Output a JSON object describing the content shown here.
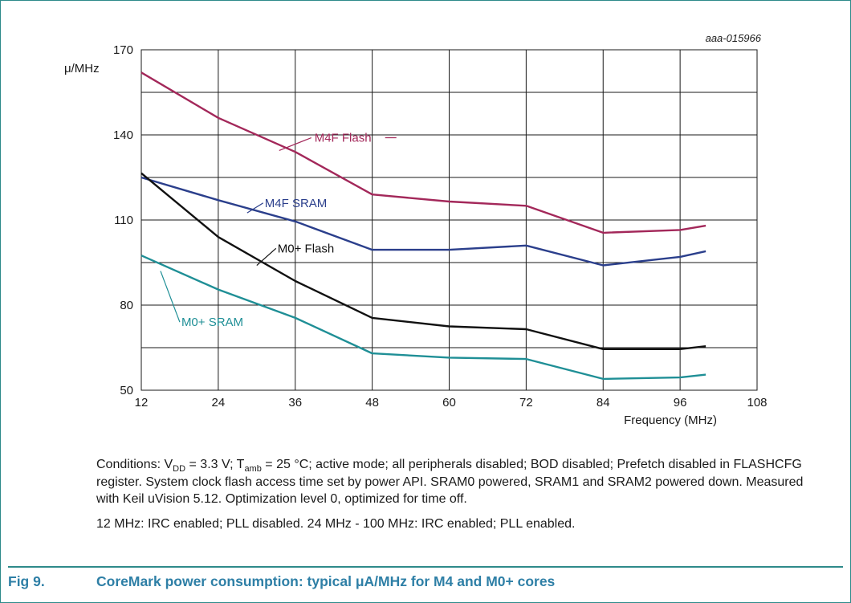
{
  "chart_data": {
    "type": "line",
    "id_label": "aaa-015966",
    "ylabel": "μ/MHz",
    "xlabel": "Frequency (MHz)",
    "xlim": [
      12,
      108
    ],
    "ylim": [
      50,
      170
    ],
    "xticks": [
      12,
      24,
      36,
      48,
      60,
      72,
      84,
      96,
      108
    ],
    "yticks": [
      50,
      80,
      110,
      140,
      170
    ],
    "grid": true,
    "series": [
      {
        "name": "M4F Flash",
        "color": "#a3285a",
        "x": [
          12,
          24,
          36,
          48,
          60,
          72,
          84,
          96,
          100
        ],
        "y": [
          162,
          146,
          134,
          119,
          116.5,
          115,
          105.5,
          106.5,
          108
        ]
      },
      {
        "name": "M4F SRAM",
        "color": "#2b3f8c",
        "x": [
          12,
          24,
          36,
          48,
          60,
          72,
          84,
          96,
          100
        ],
        "y": [
          125,
          117,
          109.5,
          99.5,
          99.5,
          101,
          94,
          97,
          99
        ]
      },
      {
        "name": "M0+ Flash",
        "color": "#111111",
        "x": [
          12,
          24,
          36,
          48,
          60,
          72,
          84,
          96,
          100
        ],
        "y": [
          126.5,
          104,
          88.5,
          75.5,
          72.5,
          71.5,
          64.5,
          64.5,
          65.5
        ]
      },
      {
        "name": "M0+ SRAM",
        "color": "#1f8f96",
        "x": [
          12,
          24,
          36,
          48,
          60,
          72,
          84,
          96,
          100
        ],
        "y": [
          97.5,
          85.5,
          75.5,
          63,
          61.5,
          61,
          54,
          54.5,
          55.5
        ]
      }
    ]
  },
  "notes": {
    "conditions_prefix": "Conditions: V",
    "vdd_sub": "DD",
    "vdd_value": " = 3.3 V; T",
    "tamb_sub": "amb",
    "conditions_rest": " = 25 °C; active mode; all peripherals disabled; BOD disabled; Prefetch disabled in FLASHCFG register. System clock flash access time set by power API. SRAM0 powered, SRAM1 and SRAM2 powered down. Measured with Keil uVision 5.12. Optimization level 0, optimized for time off.",
    "clock_note": "12 MHz: IRC enabled; PLL disabled. 24 MHz - 100 MHz: IRC enabled; PLL enabled."
  },
  "caption": {
    "fig_label": "Fig 9.",
    "title": "CoreMark power consumption: typical μA/MHz for M4 and M0+ cores"
  },
  "colors": {
    "frame": "#2e8a8a",
    "caption_text": "#2e7fa6",
    "grid": "#1a1a1a"
  }
}
